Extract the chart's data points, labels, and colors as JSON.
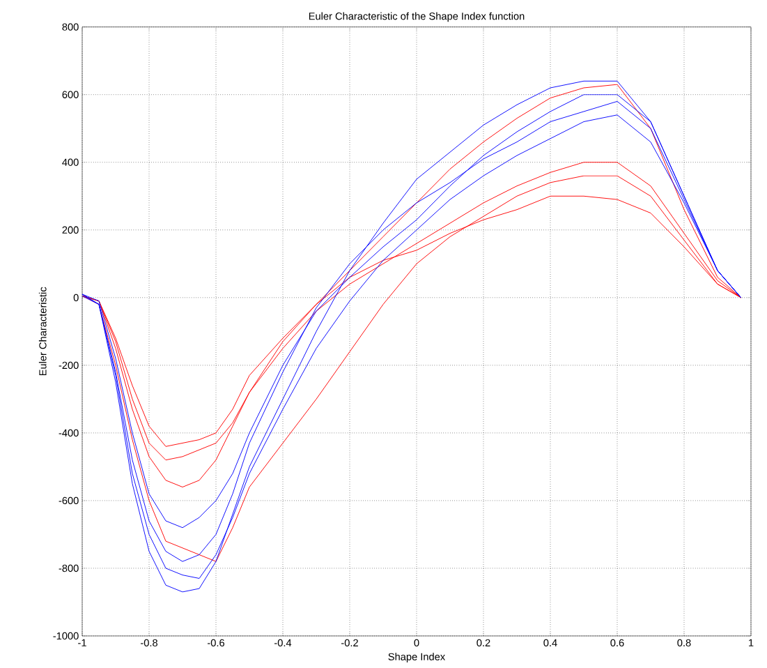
{
  "chart_data": {
    "type": "line",
    "title": "Euler Characteristic of the Shape Index function",
    "xlabel": "Shape Index",
    "ylabel": "Euler Characteristic",
    "x": [
      -1,
      -0.95,
      -0.9,
      -0.85,
      -0.8,
      -0.75,
      -0.7,
      -0.65,
      -0.6,
      -0.55,
      -0.5,
      -0.4,
      -0.3,
      -0.2,
      -0.1,
      0,
      0.1,
      0.2,
      0.3,
      0.4,
      0.5,
      0.6,
      0.7,
      0.8,
      0.9,
      0.97
    ],
    "series": [
      {
        "color": "#ff0000",
        "values": [
          5,
          -10,
          -120,
          -260,
          -380,
          -440,
          -430,
          -420,
          -400,
          -330,
          -230,
          -120,
          -20,
          60,
          110,
          140,
          190,
          230,
          260,
          300,
          300,
          290,
          250,
          150,
          40,
          0
        ]
      },
      {
        "color": "#ff0000",
        "values": [
          5,
          -10,
          -150,
          -330,
          -470,
          -540,
          -560,
          -540,
          -480,
          -380,
          -280,
          -150,
          -40,
          40,
          100,
          160,
          220,
          280,
          330,
          370,
          400,
          400,
          330,
          190,
          50,
          0
        ]
      },
      {
        "color": "#ff0000",
        "values": [
          5,
          -20,
          -200,
          -420,
          -600,
          -720,
          -740,
          -760,
          -780,
          -680,
          -560,
          -430,
          -300,
          -160,
          -20,
          100,
          180,
          240,
          300,
          340,
          360,
          360,
          300,
          170,
          40,
          0
        ]
      },
      {
        "color": "#ff0000",
        "values": [
          5,
          -10,
          -130,
          -300,
          -430,
          -480,
          -470,
          -450,
          -430,
          -370,
          -280,
          -130,
          -20,
          80,
          180,
          280,
          380,
          460,
          530,
          590,
          620,
          630,
          500,
          260,
          60,
          0
        ]
      },
      {
        "color": "#0000ff",
        "values": [
          10,
          -20,
          -250,
          -550,
          -750,
          -850,
          -870,
          -860,
          -780,
          -640,
          -500,
          -300,
          -100,
          80,
          220,
          350,
          430,
          510,
          570,
          620,
          640,
          640,
          520,
          300,
          80,
          0
        ]
      },
      {
        "color": "#0000ff",
        "values": [
          10,
          -20,
          -220,
          -480,
          -660,
          -750,
          -780,
          -760,
          -700,
          -580,
          -430,
          -220,
          -30,
          100,
          200,
          280,
          340,
          410,
          460,
          520,
          550,
          580,
          500,
          290,
          80,
          0
        ]
      },
      {
        "color": "#0000ff",
        "values": [
          10,
          -10,
          -180,
          -400,
          -580,
          -660,
          -680,
          -650,
          -600,
          -520,
          -400,
          -200,
          -40,
          60,
          150,
          230,
          330,
          420,
          490,
          550,
          600,
          600,
          520,
          300,
          80,
          0
        ]
      },
      {
        "color": "#0000ff",
        "values": [
          5,
          -20,
          -230,
          -520,
          -700,
          -800,
          -820,
          -830,
          -760,
          -650,
          -520,
          -330,
          -150,
          -10,
          110,
          200,
          290,
          360,
          420,
          470,
          520,
          540,
          460,
          280,
          80,
          0
        ]
      }
    ],
    "xlim": [
      -1,
      1
    ],
    "ylim": [
      -1000,
      800
    ],
    "xticks": [
      -1,
      -0.8,
      -0.6,
      -0.4,
      -0.2,
      0,
      0.2,
      0.4,
      0.6,
      0.8,
      1
    ],
    "yticks": [
      -1000,
      -800,
      -600,
      -400,
      -200,
      0,
      200,
      400,
      600,
      800
    ],
    "grid": true,
    "line_style": "solid",
    "marker": "none"
  }
}
